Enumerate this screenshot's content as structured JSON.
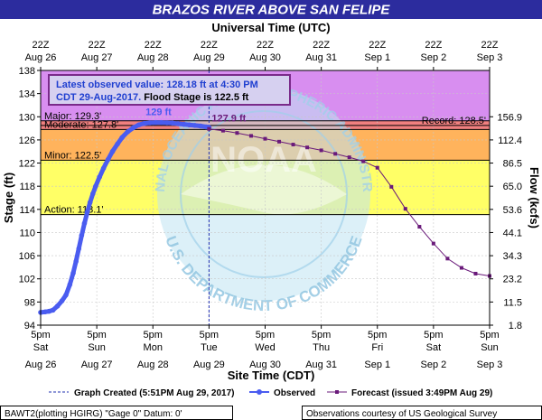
{
  "chart_data": {
    "type": "line",
    "title": "BRAZOS RIVER ABOVE SAN FELIPE",
    "top_axis": {
      "title": "Universal Time (UTC)",
      "ticks": [
        {
          "line1": "22Z",
          "line2": "Aug 26"
        },
        {
          "line1": "22Z",
          "line2": "Aug 27"
        },
        {
          "line1": "22Z",
          "line2": "Aug 28"
        },
        {
          "line1": "22Z",
          "line2": "Aug 29"
        },
        {
          "line1": "22Z",
          "line2": "Aug 30"
        },
        {
          "line1": "22Z",
          "line2": "Aug 31"
        },
        {
          "line1": "22Z",
          "line2": "Sep  1"
        },
        {
          "line1": "22Z",
          "line2": "Sep  2"
        },
        {
          "line1": "22Z",
          "line2": "Sep  3"
        }
      ]
    },
    "bottom_axis": {
      "title": "Site Time (CDT)",
      "ticks": [
        {
          "line1": "5pm",
          "line2": "Sat",
          "line3": "Aug 26"
        },
        {
          "line1": "5pm",
          "line2": "Sun",
          "line3": "Aug 27"
        },
        {
          "line1": "5pm",
          "line2": "Mon",
          "line3": "Aug 28"
        },
        {
          "line1": "5pm",
          "line2": "Tue",
          "line3": "Aug 29"
        },
        {
          "line1": "5pm",
          "line2": "Wed",
          "line3": "Aug 30"
        },
        {
          "line1": "5pm",
          "line2": "Thu",
          "line3": "Aug 31"
        },
        {
          "line1": "5pm",
          "line2": "Fri",
          "line3": "Sep 1"
        },
        {
          "line1": "5pm",
          "line2": "Sat",
          "line3": "Sep 2"
        },
        {
          "line1": "5pm",
          "line2": "Sun",
          "line3": "Sep 3"
        }
      ]
    },
    "left_axis": {
      "title": "Stage (ft)",
      "ylim": [
        94,
        138
      ],
      "ticks": [
        "94",
        "98",
        "102",
        "106",
        "110",
        "114",
        "118",
        "122",
        "126",
        "130",
        "134",
        "138"
      ]
    },
    "right_axis": {
      "title": "Flow (kcfs)",
      "ticks": [
        {
          "label": "1.8",
          "stage": 94
        },
        {
          "label": "11.5",
          "stage": 98
        },
        {
          "label": "23.2",
          "stage": 102
        },
        {
          "label": "34.3",
          "stage": 106
        },
        {
          "label": "44.1",
          "stage": 110
        },
        {
          "label": "53.6",
          "stage": 114
        },
        {
          "label": "65.0",
          "stage": 118
        },
        {
          "label": "86.5",
          "stage": 122
        },
        {
          "label": "112.4",
          "stage": 126
        },
        {
          "label": "156.9",
          "stage": 130
        }
      ]
    },
    "flood_bands": [
      {
        "from": 129.3,
        "to": 138,
        "color": "#d88ef0"
      },
      {
        "from": 127.8,
        "to": 129.3,
        "color": "#f08080"
      },
      {
        "from": 122.5,
        "to": 127.8,
        "color": "#ffb35c"
      },
      {
        "from": 113.1,
        "to": 122.5,
        "color": "#ffff66"
      }
    ],
    "levels": [
      {
        "label": "Major: 129.3'",
        "stage": 129.3,
        "side": "left"
      },
      {
        "label": "Moderate: 127.8'",
        "stage": 127.8,
        "side": "left"
      },
      {
        "label": "Minor: 122.5'",
        "stage": 122.5,
        "side": "left"
      },
      {
        "label": "Action: 113.1'",
        "stage": 113.1,
        "side": "left"
      },
      {
        "label": "Record: 128.5'",
        "stage": 128.5,
        "side": "right"
      }
    ],
    "observed": {
      "name": "Observed",
      "color": "#4a5cf0",
      "x_days": [
        0.0,
        0.08,
        0.15,
        0.22,
        0.3,
        0.38,
        0.45,
        0.52,
        0.58,
        0.63,
        0.68,
        0.73,
        0.78,
        0.83,
        0.88,
        0.93,
        0.98,
        1.05,
        1.12,
        1.2,
        1.28,
        1.37,
        1.45,
        1.55,
        1.65,
        1.75,
        1.85,
        1.95,
        2.05,
        2.15,
        2.25,
        2.35,
        2.45,
        2.55,
        2.65,
        2.75,
        2.85,
        2.95,
        3.0
      ],
      "stage": [
        96.2,
        96.3,
        96.4,
        96.6,
        97.3,
        98.2,
        99.2,
        101.0,
        103.0,
        105.0,
        107.2,
        109.5,
        111.6,
        113.5,
        115.2,
        116.7,
        118.0,
        119.6,
        121.1,
        122.6,
        124.0,
        125.3,
        126.4,
        127.4,
        128.1,
        128.6,
        128.85,
        128.95,
        129.0,
        129.0,
        128.95,
        128.9,
        128.8,
        128.7,
        128.6,
        128.5,
        128.4,
        128.25,
        128.18
      ]
    },
    "forecast": {
      "name": "Forecast",
      "color": "#6a1a7a",
      "x_days": [
        3.0,
        3.25,
        3.5,
        3.75,
        4.0,
        4.25,
        4.5,
        4.75,
        5.0,
        5.25,
        5.5,
        5.75,
        6.0,
        6.25,
        6.5,
        6.75,
        7.0,
        7.25,
        7.5,
        7.75,
        8.0
      ],
      "stage": [
        127.9,
        127.6,
        127.2,
        126.7,
        126.2,
        125.7,
        125.2,
        124.7,
        124.2,
        123.6,
        123.0,
        122.3,
        121.2,
        117.9,
        114.1,
        111.0,
        108.1,
        105.5,
        103.9,
        102.9,
        102.5
      ]
    },
    "peaks": [
      {
        "label": "129 ft",
        "x_days": 2.1,
        "stage": 129.0,
        "color": "#4a5cf0"
      },
      {
        "label": "127.9 ft",
        "x_days": 3.0,
        "stage": 127.9,
        "color": "#6a1a7a"
      }
    ],
    "created_marker": {
      "x_days": 3.0
    }
  },
  "info_box": {
    "line1": "Latest observed value: 128.18 ft at 4:30 PM",
    "line2_prefix": "CDT 29-Aug-2017.",
    "line2_suffix": " Flood Stage is 122.5 ft"
  },
  "legend": {
    "created": "Graph Created (5:51PM Aug 29, 2017)",
    "observed": "Observed",
    "forecast": "Forecast (issued 3:49PM Aug 29)"
  },
  "footer": {
    "left": "BAWT2(plotting HGIRG) \"Gage 0\" Datum: 0'",
    "right": "Observations courtesy of US Geological Survey"
  },
  "watermark": {
    "center": "NOAA",
    "top_arc": "NATIONAL OCEANIC AND ATMOSPHERIC ADMINISTRATION",
    "bottom_arc": "U.S. DEPARTMENT OF COMMERCE"
  },
  "colors": {
    "title_bar": "#2c2c9e",
    "plot_border": "#000000",
    "info_box_fill": "#d6d0f0",
    "info_box_border": "#7a2a8a"
  }
}
